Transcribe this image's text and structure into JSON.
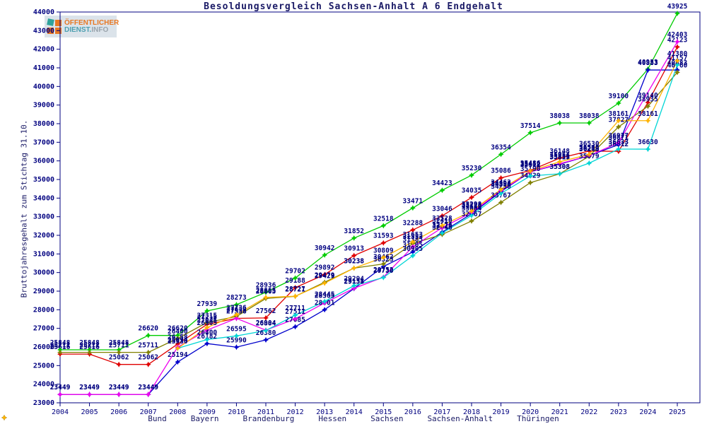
{
  "title": "Besoldungsvergleich Sachsen-Anhalt A 6 Endgehalt",
  "logo": {
    "line1": "ÖFFENTLICHER",
    "line2_part1": "DIENST.",
    "line2_part2": "INFO"
  },
  "y_axis_title": "Bruttojahresgehalt zum Stichtag 31.10.",
  "label_color": "#000080",
  "axis_color": "#000080",
  "chart_data": {
    "type": "line",
    "x": [
      2004,
      2005,
      2006,
      2007,
      2008,
      2009,
      2010,
      2011,
      2012,
      2013,
      2014,
      2015,
      2016,
      2017,
      2018,
      2019,
      2020,
      2021,
      2022,
      2023,
      2024,
      2025
    ],
    "ylim": [
      23000,
      44000
    ],
    "ytick_step": 1000,
    "grid": false,
    "legend_position": "bottom",
    "point_labels": true,
    "series": [
      {
        "name": "Bund",
        "color": "#e00000",
        "values": [
          25616,
          25616,
          25062,
          25062,
          26158,
          27215,
          27538,
          27562,
          29188,
          29892,
          30913,
          31593,
          32288,
          33046,
          34035,
          35086,
          35486,
          36148,
          36530,
          36512,
          39140,
          42123
        ]
      },
      {
        "name": "Bayern",
        "color": "#00cc00",
        "values": [
          25848,
          25848,
          25848,
          26620,
          26620,
          27939,
          28273,
          28936,
          29702,
          30942,
          31852,
          32518,
          33471,
          34423,
          35230,
          36354,
          37514,
          38038,
          38038,
          39100,
          40933,
          43925
        ]
      },
      {
        "name": "Brandenburg",
        "color": "#0000cc",
        "values": [
          23449,
          23449,
          23449,
          23449,
          25194,
          26182,
          25990,
          26380,
          27085,
          28001,
          29138,
          30323,
          31105,
          32176,
          33158,
          34350,
          35412,
          35819,
          36279,
          36871,
          40883,
          40883
        ]
      },
      {
        "name": "Hessen",
        "color": "#808000",
        "values": [
          25711,
          25711,
          25711,
          25711,
          26460,
          27315,
          27639,
          28605,
          28721,
          29479,
          30238,
          30462,
          31553,
          32046,
          32767,
          33767,
          34829,
          35308,
          36248,
          37827,
          38935,
          40760
        ]
      },
      {
        "name": "Sachsen",
        "color": "#ee00ee",
        "values": [
          23449,
          23449,
          23449,
          23449,
          25994,
          26905,
          27536,
          26904,
          27511,
          28365,
          29151,
          29752,
          31385,
          32410,
          33228,
          34398,
          35412,
          35851,
          36279,
          36977,
          null,
          42403
        ]
      },
      {
        "name": "Sachsen-Anhalt",
        "color": "#00d5d5",
        "values": [
          null,
          null,
          null,
          null,
          25930,
          26400,
          26595,
          26884,
          27711,
          28445,
          29294,
          29730,
          30905,
          32124,
          33064,
          34250,
          35190,
          35308,
          35879,
          36633,
          36630,
          41157
        ]
      },
      {
        "name": "Thüringen",
        "color": "#ffb300",
        "values": [
          null,
          null,
          null,
          null,
          25930,
          27045,
          27736,
          28665,
          28727,
          29429,
          30238,
          30809,
          31653,
          32528,
          33298,
          34462,
          35452,
          35954,
          36348,
          38161,
          38161,
          41380
        ]
      }
    ]
  }
}
